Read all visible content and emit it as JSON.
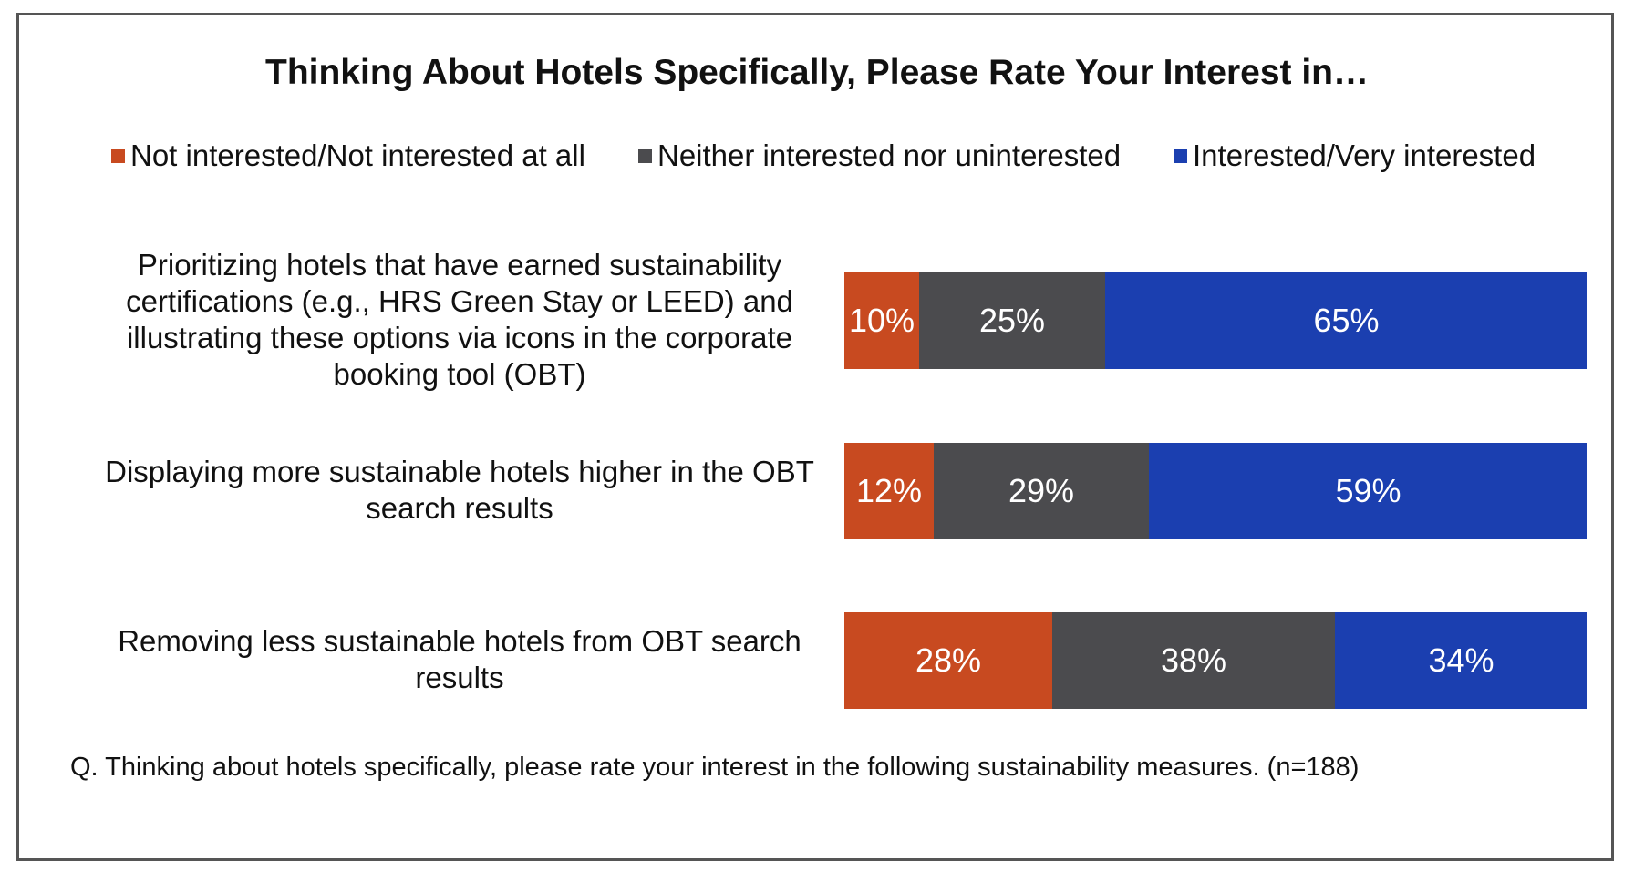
{
  "chart_data": {
    "type": "bar",
    "orientation": "horizontal",
    "stacked": true,
    "title": "Thinking About Hotels Specifically, Please Rate Your Interest in…",
    "categories": [
      "Prioritizing hotels that have earned sustainability certifications (e.g., HRS Green Stay or LEED) and illustrating these options via icons in the corporate booking tool (OBT)",
      "Displaying more sustainable hotels higher in the OBT search results",
      "Removing less sustainable hotels from OBT search results"
    ],
    "series": [
      {
        "name": "Not interested/Not interested at all",
        "color": "#c84a20",
        "values": [
          10,
          12,
          28
        ],
        "labels": [
          "10%",
          "12%",
          "28%"
        ]
      },
      {
        "name": "Neither interested nor uninterested",
        "color": "#4b4b4e",
        "values": [
          25,
          29,
          38
        ],
        "labels": [
          "25%",
          "29%",
          "38%"
        ]
      },
      {
        "name": "Interested/Very interested",
        "color": "#1b3fb0",
        "values": [
          65,
          59,
          34
        ],
        "labels": [
          "65%",
          "59%",
          "34%"
        ]
      }
    ],
    "xlim": [
      0,
      100
    ],
    "legend_position": "top",
    "grid": false,
    "footnote": "Q. Thinking about hotels specifically, please rate your interest in the following sustainability measures. (n=188)"
  }
}
